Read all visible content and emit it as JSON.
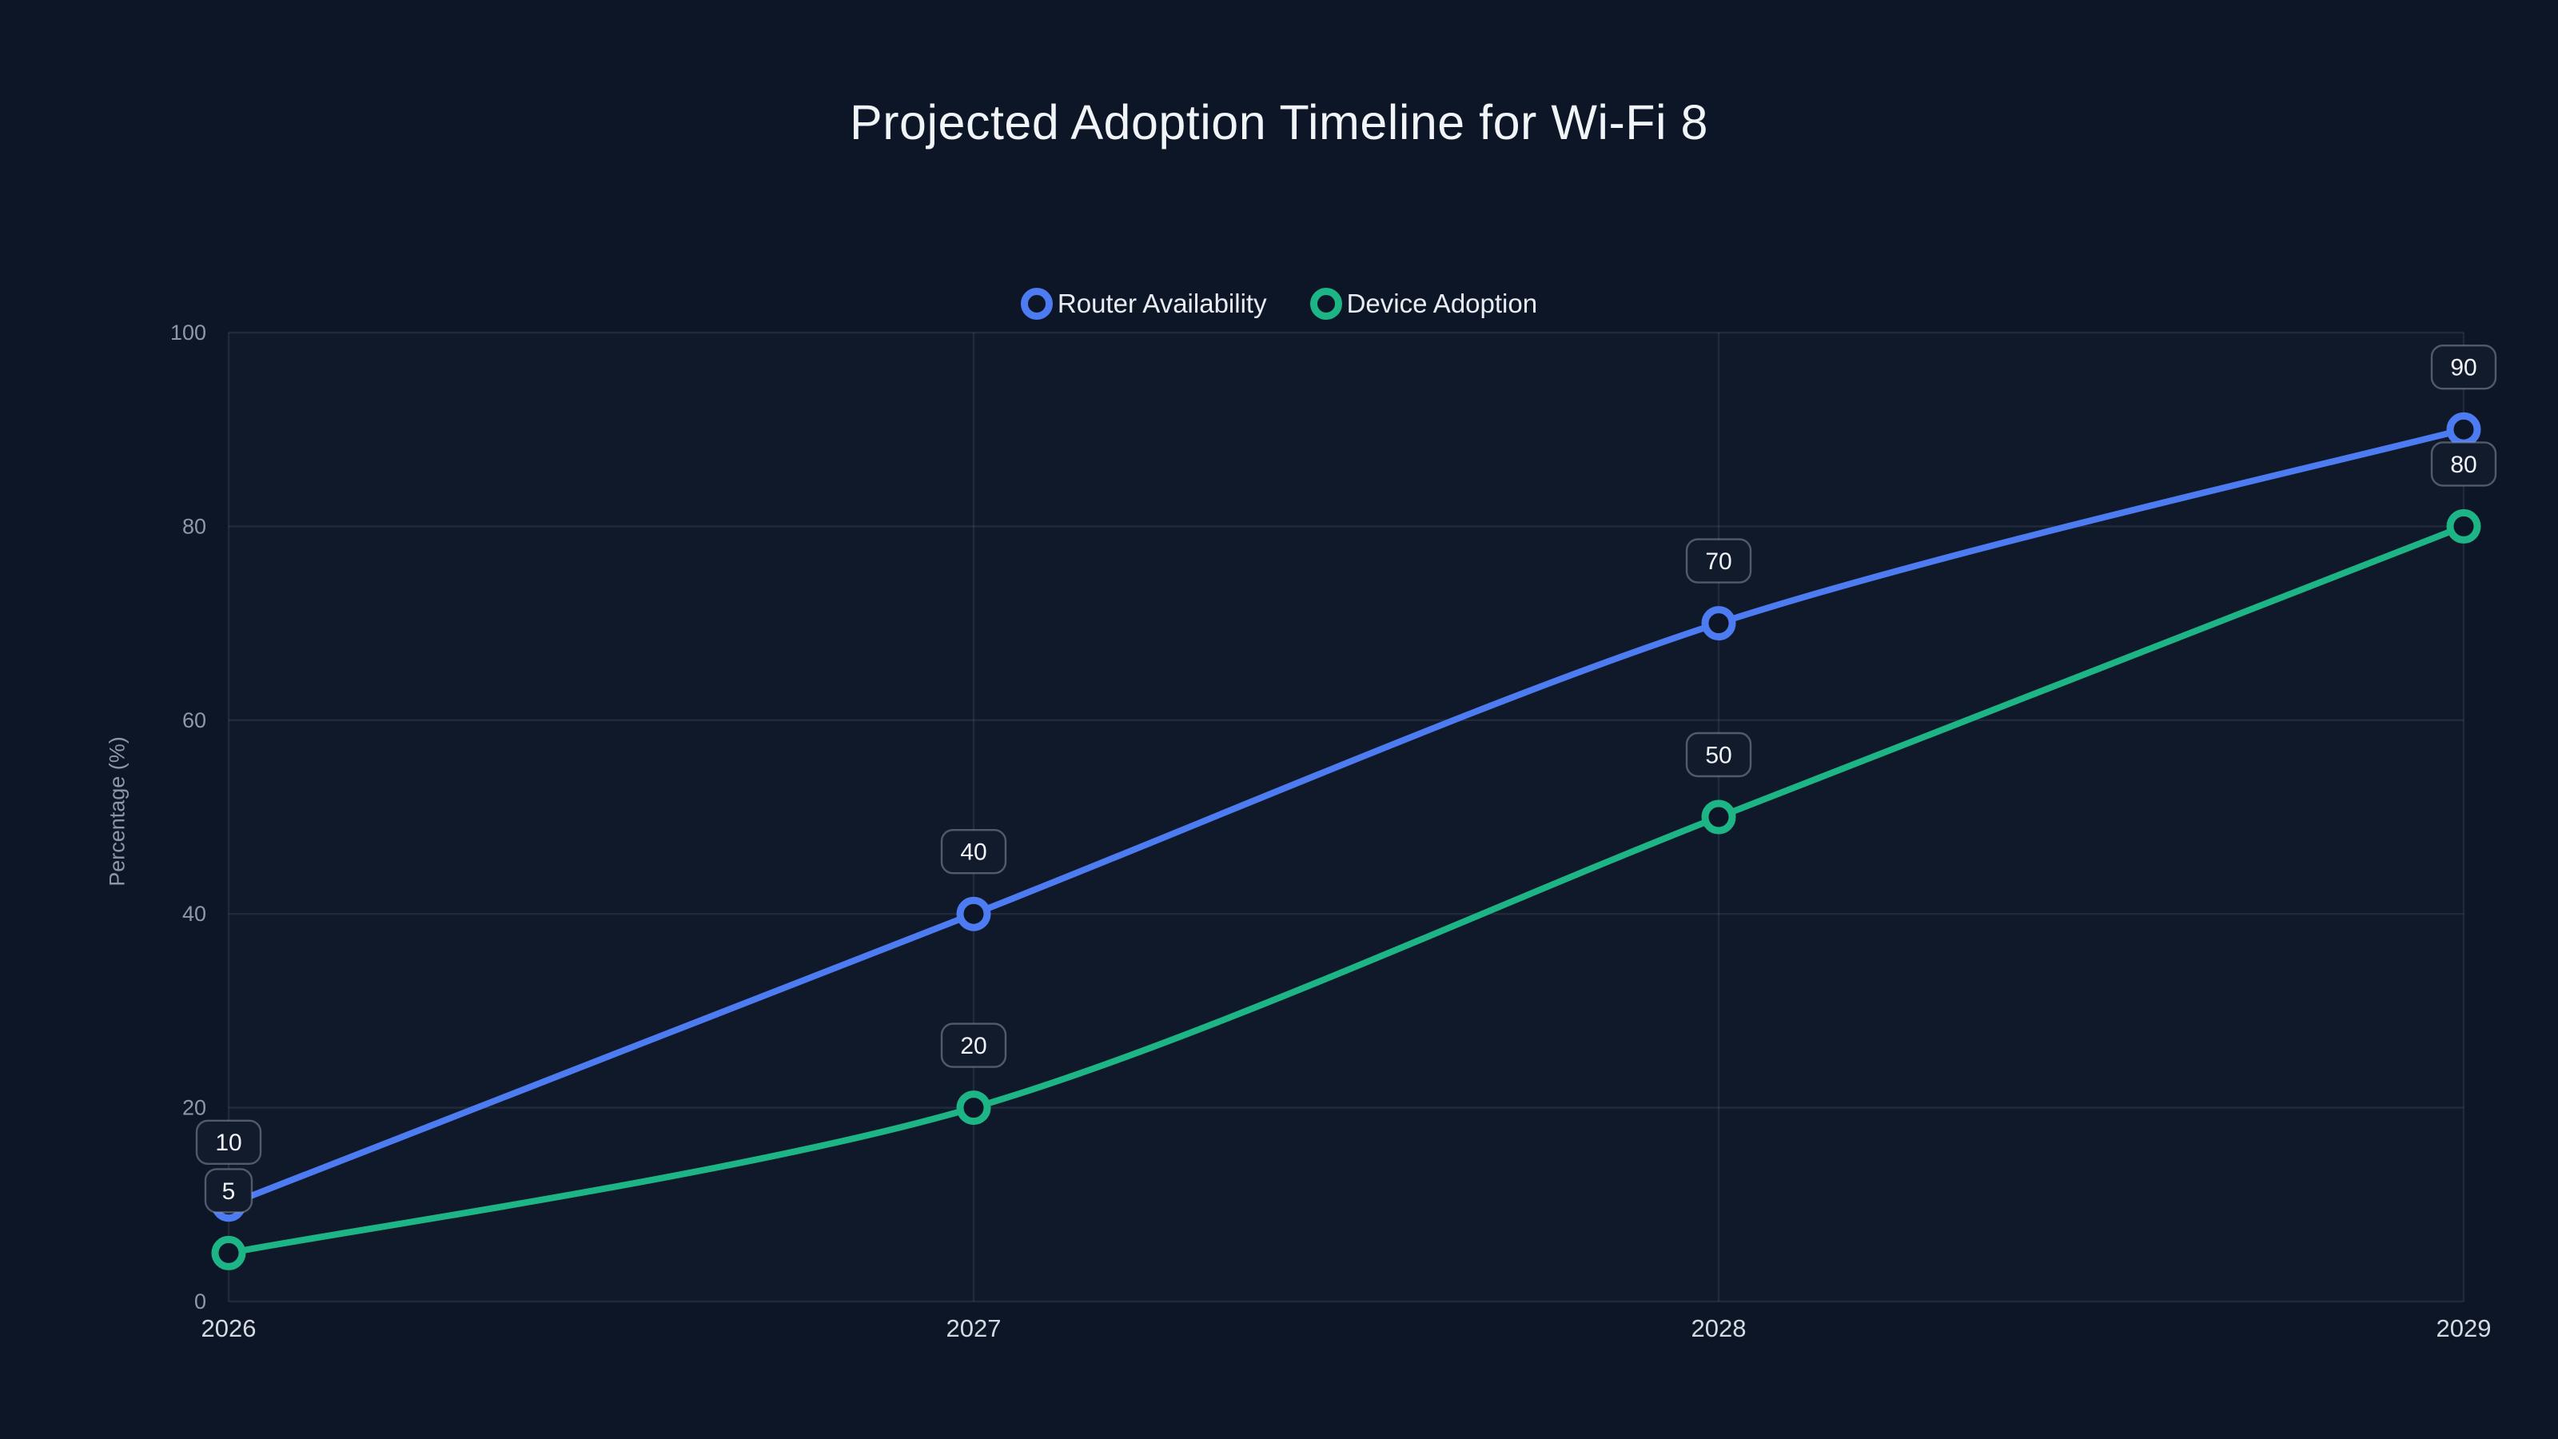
{
  "chart_data": {
    "type": "line",
    "title": "Projected Adoption Timeline for Wi-Fi 8",
    "categories": [
      "2026",
      "2027",
      "2028",
      "2029"
    ],
    "series": [
      {
        "name": "Router Availability",
        "values": [
          10,
          40,
          70,
          90
        ],
        "color": "#4d7cf2"
      },
      {
        "name": "Device Adoption",
        "values": [
          5,
          20,
          50,
          80
        ],
        "color": "#1db585"
      }
    ],
    "xlabel": "",
    "ylabel": "Percentage (%)",
    "ylim": [
      0,
      100
    ],
    "yticks": [
      0,
      20,
      40,
      60,
      80,
      100
    ],
    "grid": true,
    "legend_position": "top",
    "point_labels": true,
    "colors": {
      "background": "#0d1626",
      "grid": "rgba(148,163,184,0.13)",
      "tick": "#8f98a8",
      "x_label": "#d5dae2",
      "pill_bg": "#121b2c",
      "pill_border": "rgba(160,170,190,0.45)",
      "title_text": "#f1f4f8"
    }
  }
}
